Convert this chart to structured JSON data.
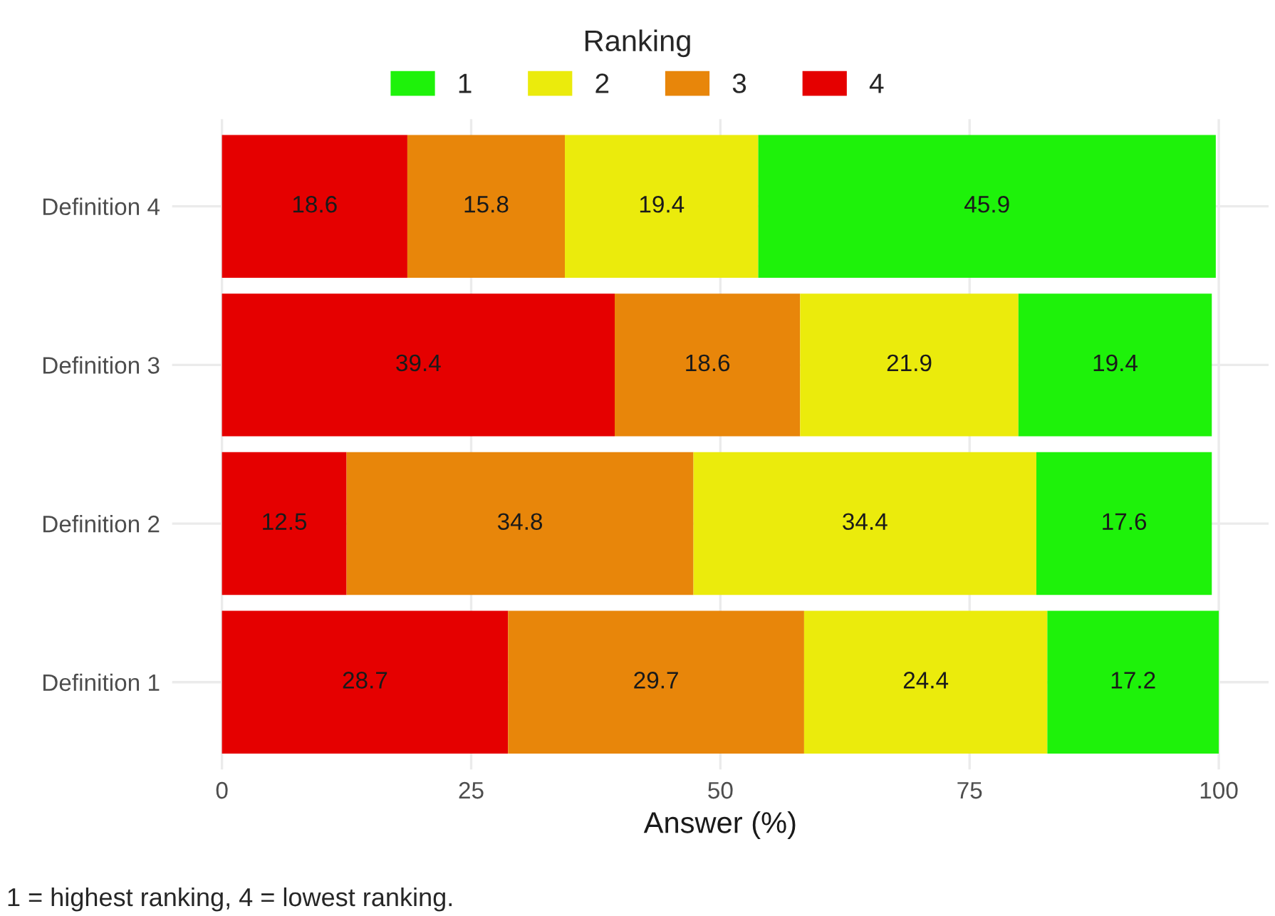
{
  "chart_data": {
    "type": "bar",
    "orientation": "horizontal",
    "stacked": true,
    "categories": [
      "Definition 4",
      "Definition 3",
      "Definition 2",
      "Definition 1"
    ],
    "series": [
      {
        "name": "4",
        "color": "#e50000",
        "values": [
          18.6,
          39.4,
          12.5,
          28.7
        ]
      },
      {
        "name": "3",
        "color": "#e8860a",
        "values": [
          15.8,
          18.6,
          34.8,
          29.7
        ]
      },
      {
        "name": "2",
        "color": "#ebeb0c",
        "values": [
          19.4,
          21.9,
          34.4,
          24.4
        ]
      },
      {
        "name": "1",
        "color": "#1ef20a",
        "values": [
          45.9,
          19.4,
          17.6,
          17.2
        ]
      }
    ],
    "xlabel": "Answer (%)",
    "legend_title": "Ranking",
    "legend": "top",
    "xlim": [
      -5,
      105
    ],
    "xticks": [
      0,
      25,
      50,
      75,
      100
    ],
    "grid": true,
    "data_labels": true,
    "annotations": [
      "1 = highest ranking, 4 = lowest ranking."
    ]
  }
}
